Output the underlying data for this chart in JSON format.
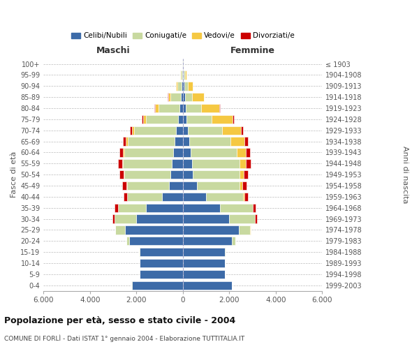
{
  "age_groups": [
    "0-4",
    "5-9",
    "10-14",
    "15-19",
    "20-24",
    "25-29",
    "30-34",
    "35-39",
    "40-44",
    "45-49",
    "50-54",
    "55-59",
    "60-64",
    "65-69",
    "70-74",
    "75-79",
    "80-84",
    "85-89",
    "90-94",
    "95-99",
    "100+"
  ],
  "birth_years": [
    "1999-2003",
    "1994-1998",
    "1989-1993",
    "1984-1988",
    "1979-1983",
    "1974-1978",
    "1969-1973",
    "1964-1968",
    "1959-1963",
    "1954-1958",
    "1949-1953",
    "1944-1948",
    "1939-1943",
    "1934-1938",
    "1929-1933",
    "1924-1928",
    "1919-1923",
    "1914-1918",
    "1909-1913",
    "1904-1908",
    "≤ 1903"
  ],
  "males": {
    "celibi": [
      2200,
      1850,
      1850,
      1850,
      2300,
      2500,
      2000,
      1600,
      900,
      600,
      530,
      480,
      420,
      370,
      300,
      200,
      150,
      80,
      50,
      30,
      10
    ],
    "coniugati": [
      10,
      15,
      20,
      30,
      120,
      400,
      950,
      1200,
      1500,
      1800,
      2000,
      2100,
      2100,
      2000,
      1800,
      1400,
      900,
      450,
      200,
      70,
      20
    ],
    "vedovi": [
      0,
      0,
      0,
      0,
      5,
      5,
      5,
      5,
      10,
      20,
      30,
      40,
      50,
      80,
      100,
      120,
      150,
      100,
      50,
      20,
      5
    ],
    "divorziati": [
      0,
      0,
      0,
      0,
      5,
      20,
      80,
      130,
      150,
      180,
      180,
      170,
      150,
      120,
      80,
      50,
      20,
      15,
      10,
      5,
      0
    ]
  },
  "females": {
    "nubili": [
      2100,
      1800,
      1800,
      1800,
      2100,
      2400,
      2000,
      1600,
      1000,
      600,
      430,
      380,
      320,
      260,
      200,
      150,
      120,
      90,
      60,
      30,
      10
    ],
    "coniugate": [
      10,
      10,
      15,
      30,
      150,
      500,
      1100,
      1400,
      1600,
      1850,
      2000,
      2050,
      2000,
      1800,
      1500,
      1100,
      650,
      300,
      150,
      50,
      10
    ],
    "vedove": [
      0,
      0,
      0,
      0,
      5,
      5,
      10,
      20,
      50,
      100,
      180,
      280,
      400,
      600,
      800,
      900,
      800,
      500,
      200,
      80,
      20
    ],
    "divorziate": [
      0,
      0,
      0,
      0,
      5,
      20,
      80,
      120,
      150,
      180,
      200,
      200,
      180,
      140,
      100,
      60,
      20,
      15,
      10,
      5,
      0
    ]
  },
  "colors": {
    "celibi_nubili": "#3D6BA8",
    "coniugati": "#C8D9A0",
    "vedovi": "#F5C842",
    "divorziati": "#CC0000"
  },
  "title": "Popolazione per età, sesso e stato civile - 2004",
  "subtitle": "COMUNE DI FORLÌ - Dati ISTAT 1° gennaio 2004 - Elaborazione TUTTITALIA.IT",
  "xlabel_left": "Maschi",
  "xlabel_right": "Femmine",
  "ylabel_left": "Fasce di età",
  "ylabel_right": "Anni di nascita",
  "xlim": 6000,
  "bg_color": "#ffffff",
  "grid_color": "#bbbbbb"
}
